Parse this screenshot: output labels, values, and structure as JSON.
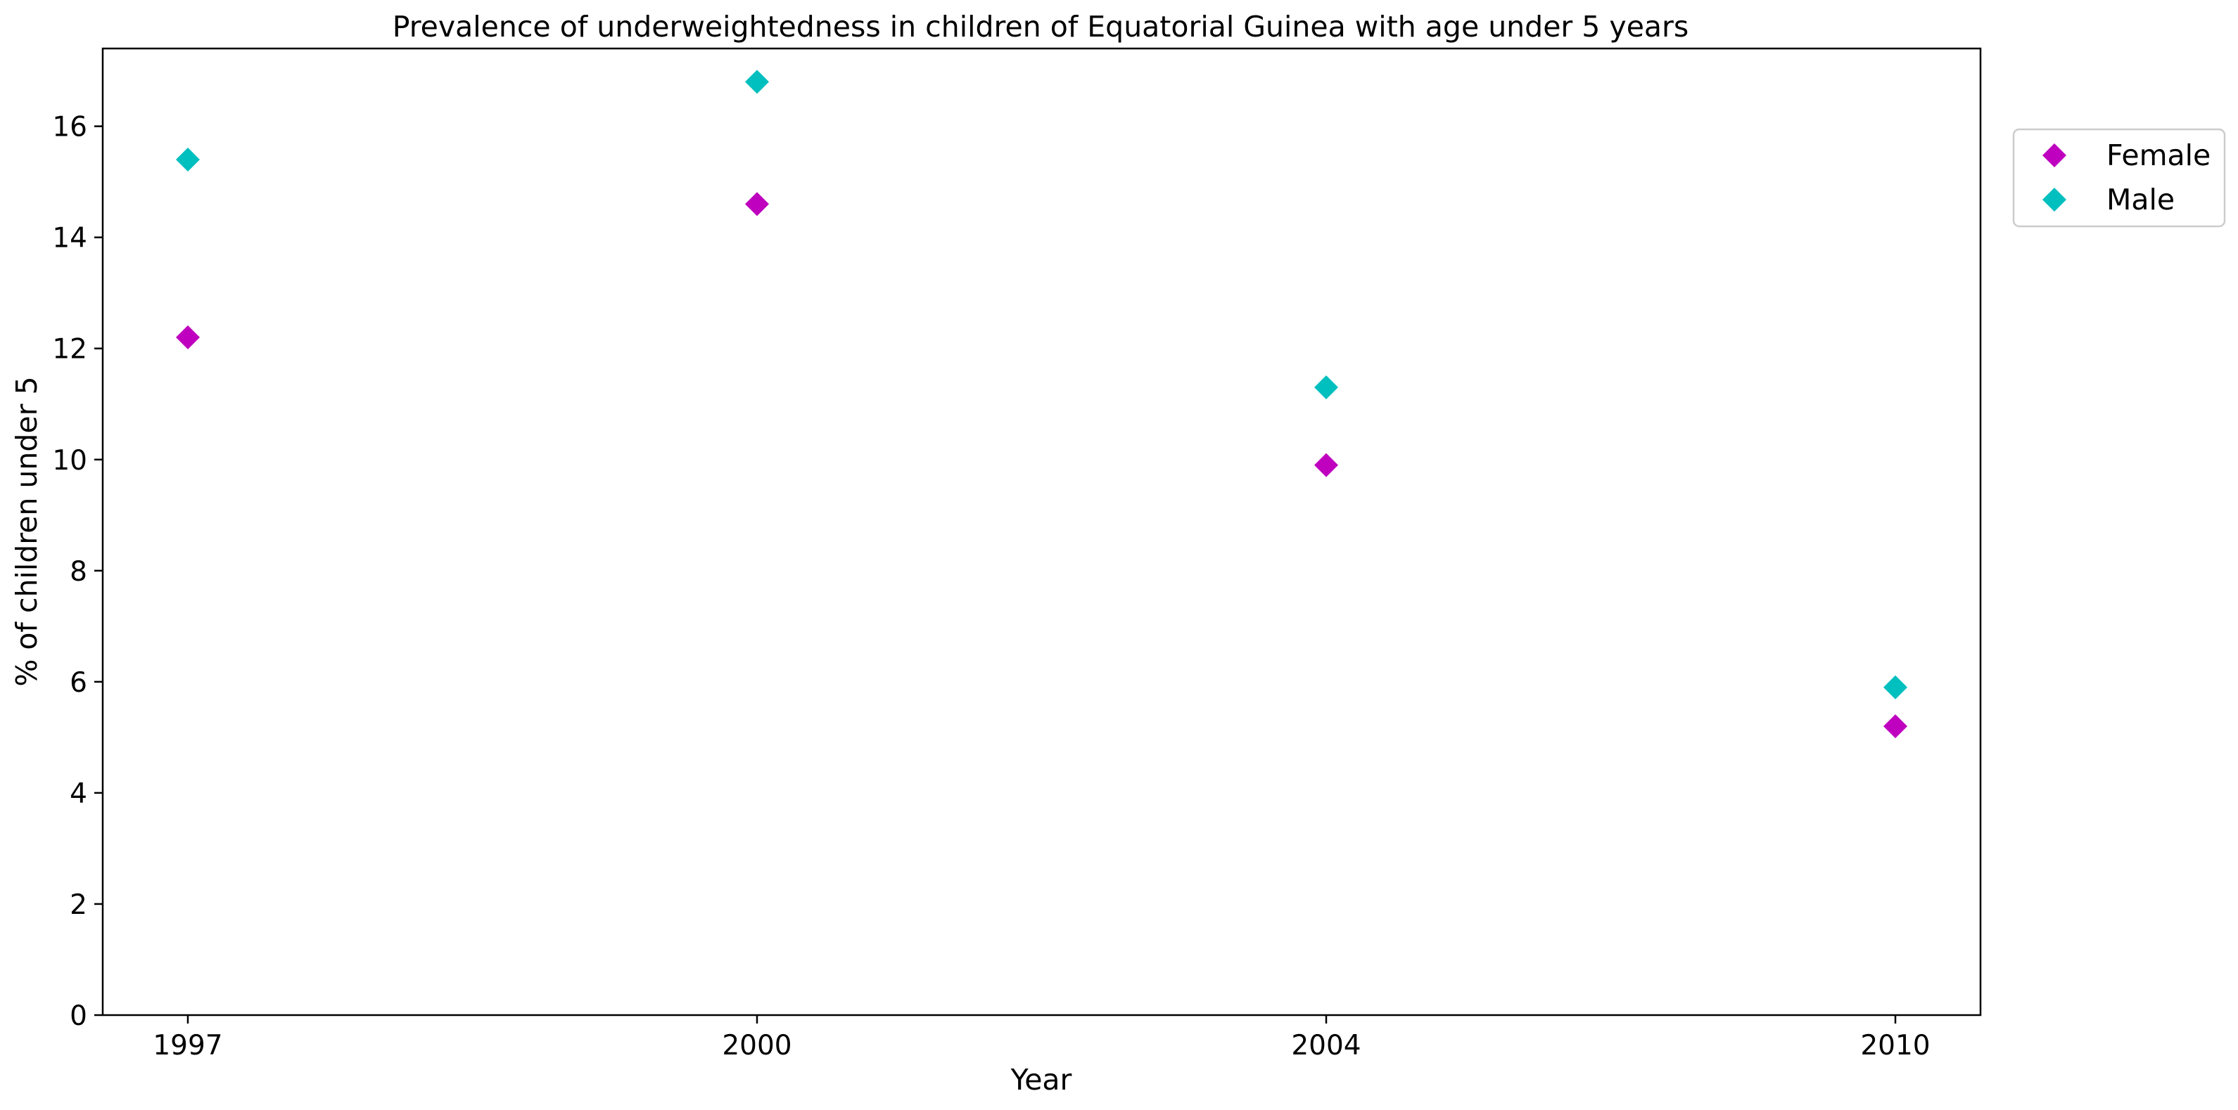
{
  "chart_data": {
    "type": "scatter",
    "title": "Prevalence of underweightedness in children of Equatorial Guinea with age under 5 years",
    "xlabel": "Year",
    "ylabel": "% of children under 5",
    "categories": [
      "1997",
      "2000",
      "2004",
      "2010"
    ],
    "ylim": [
      0,
      17.4
    ],
    "yticks": [
      0,
      2,
      4,
      6,
      8,
      10,
      12,
      14,
      16
    ],
    "grid": false,
    "legend_position": "right",
    "marker": "diamond",
    "series": [
      {
        "name": "Female",
        "color": "#bf00bf",
        "values": [
          12.2,
          14.6,
          9.9,
          5.2
        ]
      },
      {
        "name": "Male",
        "color": "#00bfbf",
        "values": [
          15.4,
          16.8,
          11.3,
          5.9
        ]
      }
    ]
  }
}
